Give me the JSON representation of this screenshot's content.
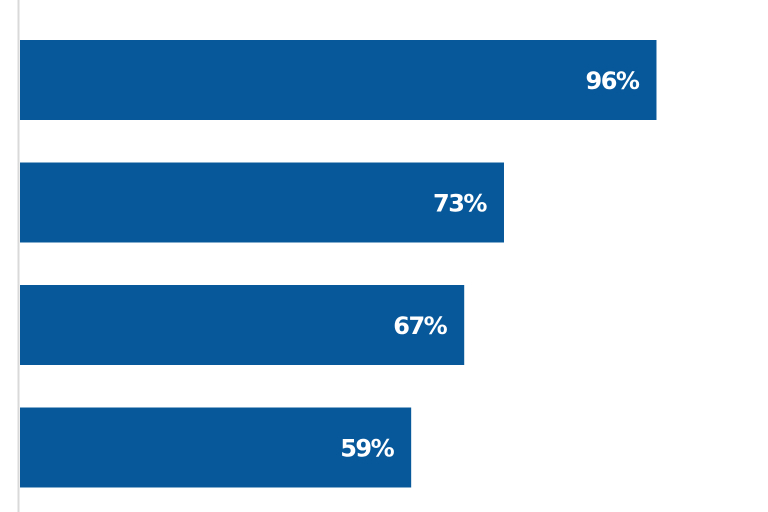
{
  "chart_data": {
    "type": "bar",
    "orientation": "horizontal",
    "values": [
      96,
      73,
      67,
      59
    ],
    "value_labels": [
      "96%",
      "73%",
      "67%",
      "59%"
    ],
    "color": "#07589b",
    "xlim": [
      0,
      100
    ]
  }
}
